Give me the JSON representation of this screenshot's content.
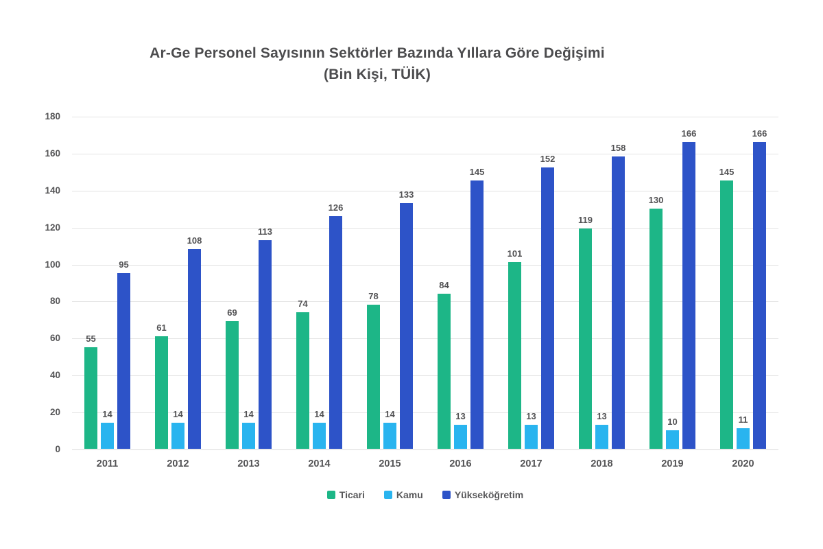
{
  "title": {
    "line1": "Ar-Ge Personel Sayısının Sektörler Bazında Yıllara Göre Değişimi",
    "line2": "(Bin Kişi, TÜİK)"
  },
  "chart_data": {
    "type": "bar",
    "title": "Ar-Ge Personel Sayısının Sektörler Bazında Yıllara Göre Değişimi",
    "subtitle": "(Bin Kişi, TÜİK)",
    "categories": [
      "2011",
      "2012",
      "2013",
      "2014",
      "2015",
      "2016",
      "2017",
      "2018",
      "2019",
      "2020"
    ],
    "series": [
      {
        "name": "Ticari",
        "color": "#1db687",
        "values": [
          55,
          61,
          69,
          74,
          78,
          84,
          101,
          119,
          130,
          145
        ]
      },
      {
        "name": "Kamu",
        "color": "#29b4ef",
        "values": [
          14,
          14,
          14,
          14,
          14,
          13,
          13,
          13,
          10,
          11
        ]
      },
      {
        "name": "Yükseköğretim",
        "color": "#2d53c8",
        "values": [
          95,
          108,
          113,
          126,
          133,
          145,
          152,
          158,
          166,
          166
        ]
      }
    ],
    "ylim": [
      0,
      180
    ],
    "yticks": [
      0,
      20,
      40,
      60,
      80,
      100,
      120,
      140,
      160,
      180
    ],
    "xlabel": "",
    "ylabel": "",
    "grid": true,
    "data_labels": true,
    "legend_position": "bottom"
  },
  "style": {
    "background": "#ffffff",
    "title_color": "#4c4c4e",
    "label_color": "#525254",
    "tick_color": "#545456",
    "grid_color": "#e3e3e3",
    "baseline_color": "#d7d7d7"
  }
}
